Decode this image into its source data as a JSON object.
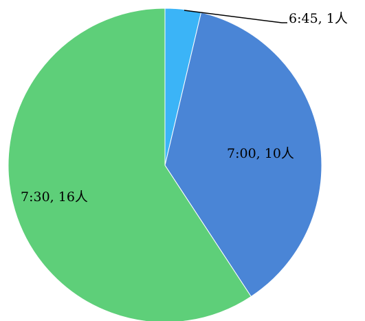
{
  "chart_data": {
    "type": "pie",
    "categories": [
      "6:45",
      "7:00",
      "7:30"
    ],
    "values": [
      1,
      10,
      16
    ],
    "unit": "人",
    "data_labels": [
      "6:45, 1人",
      "7:00, 10人",
      "7:30, 16人"
    ],
    "colors": [
      "#3bb4f7",
      "#4a85d6",
      "#5ecf79"
    ],
    "title": "",
    "legend": "none",
    "start_angle": "top",
    "direction": "clockwise"
  }
}
